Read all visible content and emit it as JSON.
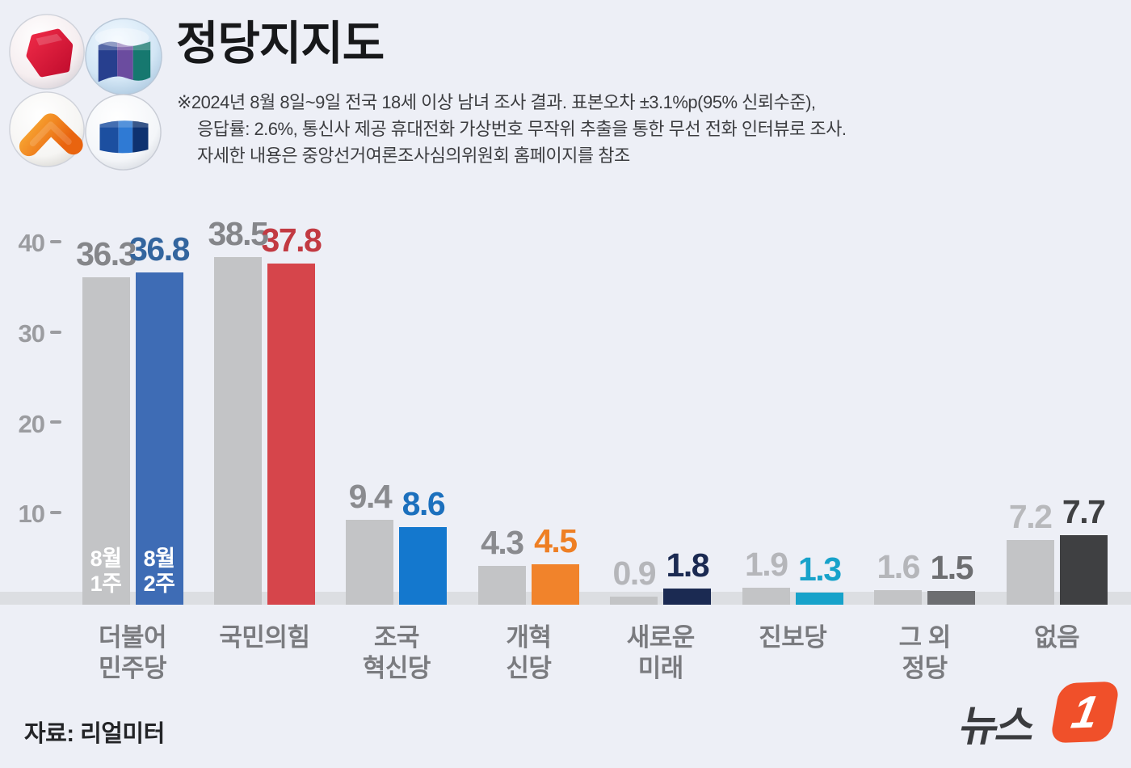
{
  "header": {
    "title": "정당지지도",
    "note_lines": [
      "※2024년 8월 8일~9일 전국 18세 이상 남녀 조사 결과. 표본오차 ±3.1%p(95% 신뢰수준),",
      "응답률: 2.6%, 통신사 제공 휴대전화 가상번호 무작위 추출을 통한 무선 전화 인터뷰로 조사.",
      "자세한 내용은 중앙선거여론조사심의위원회 홈페이지를 참조"
    ]
  },
  "chart_data": {
    "type": "bar",
    "title": "정당지지도",
    "categories": [
      "더불어\n민주당",
      "국민의힘",
      "조국\n혁신당",
      "개혁\n신당",
      "새로운\n미래",
      "진보당",
      "그 외\n정당",
      "없음"
    ],
    "yticks": [
      10,
      20,
      30,
      40
    ],
    "ylim": [
      0,
      42
    ],
    "grid": false,
    "legend_position": "inside-first-bars",
    "series": [
      {
        "name": "8월 1주",
        "values": [
          36.3,
          38.5,
          9.4,
          4.3,
          0.9,
          1.9,
          1.6,
          7.2
        ],
        "bar_colors": [
          "#c3c4c6",
          "#c3c4c6",
          "#c3c4c6",
          "#c3c4c6",
          "#c3c4c6",
          "#c3c4c6",
          "#c3c4c6",
          "#c3c4c6"
        ],
        "label_colors": [
          "#85868a",
          "#85868a",
          "#8a8b8f",
          "#8a8b8f",
          "#b5b6ba",
          "#b5b6ba",
          "#b5b6ba",
          "#b8b9bc"
        ]
      },
      {
        "name": "8월 2주",
        "values": [
          36.8,
          37.8,
          8.6,
          4.5,
          1.8,
          1.3,
          1.5,
          7.7
        ],
        "bar_colors": [
          "#3e6cb5",
          "#d6454b",
          "#1478ce",
          "#f1832b",
          "#1b2a52",
          "#17a2ca",
          "#6d6e71",
          "#3f4042"
        ],
        "label_colors": [
          "#33659e",
          "#c23a42",
          "#1c70bd",
          "#ee7f24",
          "#1b2a52",
          "#17a2ca",
          "#6d6e71",
          "#3f4042"
        ]
      }
    ]
  },
  "footer": {
    "source_label": "자료: 리얼미터",
    "brand_text": "뉴스",
    "brand_numeral": "1"
  }
}
